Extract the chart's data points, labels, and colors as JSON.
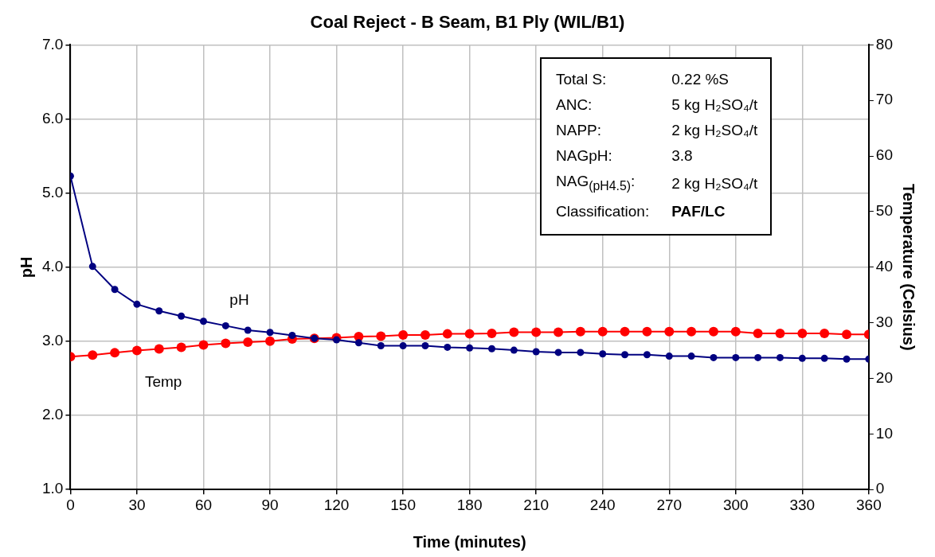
{
  "chart_data": {
    "type": "line",
    "title": "Coal Reject - B Seam, B1 Ply (WIL/B1)",
    "xlabel": "Time (minutes)",
    "ylabel": "pH",
    "y2label": "Temperature (Celsius)",
    "x": [
      0,
      10,
      20,
      30,
      40,
      50,
      60,
      70,
      80,
      90,
      100,
      110,
      120,
      130,
      140,
      150,
      160,
      170,
      180,
      190,
      200,
      210,
      220,
      230,
      240,
      250,
      260,
      270,
      280,
      290,
      300,
      310,
      320,
      330,
      340,
      350,
      360
    ],
    "series": [
      {
        "name": "pH",
        "color": "#000080",
        "values": [
          5.23,
          4.01,
          3.7,
          3.5,
          3.41,
          3.34,
          3.27,
          3.21,
          3.15,
          3.12,
          3.08,
          3.04,
          3.02,
          2.98,
          2.94,
          2.94,
          2.94,
          2.92,
          2.91,
          2.9,
          2.88,
          2.86,
          2.85,
          2.85,
          2.83,
          2.82,
          2.82,
          2.8,
          2.8,
          2.78,
          2.78,
          2.78,
          2.78,
          2.77,
          2.77,
          2.76,
          2.76
        ]
      },
      {
        "name": "Temp",
        "color": "#ff0000",
        "axis": "y2",
        "values": [
          23.9,
          24.2,
          24.6,
          25.0,
          25.3,
          25.6,
          26.0,
          26.3,
          26.5,
          26.7,
          27.1,
          27.2,
          27.3,
          27.5,
          27.6,
          27.8,
          27.8,
          28.0,
          28.0,
          28.1,
          28.3,
          28.3,
          28.3,
          28.4,
          28.4,
          28.4,
          28.4,
          28.4,
          28.4,
          28.4,
          28.4,
          28.1,
          28.1,
          28.1,
          28.1,
          27.9,
          27.9
        ]
      }
    ],
    "xlim": [
      0,
      360
    ],
    "xticks": [
      0,
      30,
      60,
      90,
      120,
      150,
      180,
      210,
      240,
      270,
      300,
      330,
      360
    ],
    "ylim": [
      1,
      7
    ],
    "yticks": [
      {
        "value": 1,
        "label": "1.0"
      },
      {
        "value": 2,
        "label": "2.0"
      },
      {
        "value": 3,
        "label": "3.0"
      },
      {
        "value": 4,
        "label": "4.0"
      },
      {
        "value": 5,
        "label": "5.0"
      },
      {
        "value": 6,
        "label": "6.0"
      },
      {
        "value": 7,
        "label": "7.0"
      }
    ],
    "y2lim": [
      0,
      80
    ],
    "y2ticks": [
      0,
      10,
      20,
      30,
      40,
      50,
      60,
      70,
      80
    ],
    "grid": true,
    "legend": false,
    "marker": "circle",
    "line_style": "solid",
    "annotations": [
      "Total S:",
      "0.22 %S",
      "ANC:",
      "5 kg H₂SO₄/t",
      "NAPP:",
      "2 kg H₂SO₄/t",
      "NAGpH:",
      "3.8",
      "NAG$_{(pH4.5)}$:",
      "2 kg H₂SO₄/t",
      "Classification:",
      "PAF/LC"
    ]
  }
}
